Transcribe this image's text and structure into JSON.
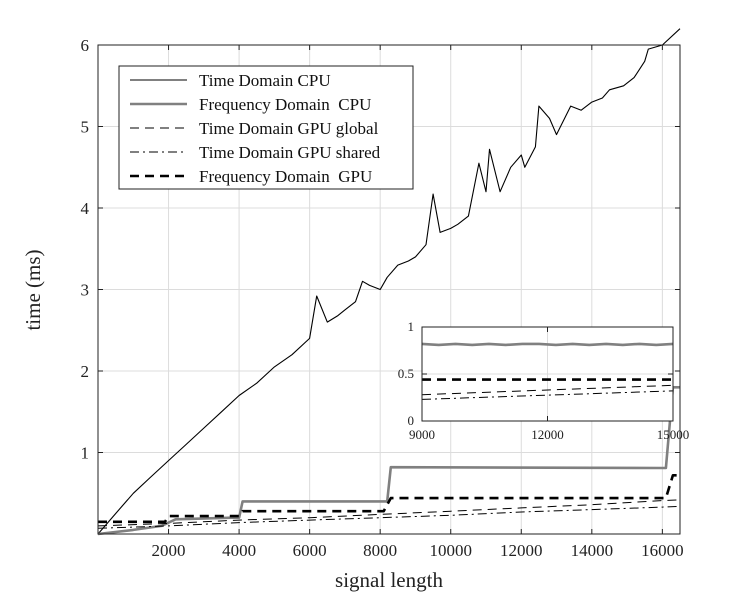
{
  "chart_data": [
    {
      "type": "line",
      "xlabel": "signal length",
      "ylabel": "time (ms)",
      "xlim": [
        0,
        16500
      ],
      "ylim": [
        0,
        6.0
      ],
      "xticks": [
        2000,
        4000,
        6000,
        8000,
        10000,
        12000,
        14000,
        16000
      ],
      "yticks": [
        1,
        2,
        3,
        4,
        5,
        6
      ],
      "grid": true,
      "legend_position": "top-left",
      "series": [
        {
          "name": "Time Domain CPU",
          "style": "solid-thin-black",
          "x": [
            0,
            500,
            1000,
            1500,
            2000,
            2500,
            3000,
            3500,
            4000,
            4500,
            5000,
            5500,
            6000,
            6200,
            6500,
            6800,
            7000,
            7300,
            7500,
            7700,
            8000,
            8200,
            8500,
            8800,
            9000,
            9300,
            9500,
            9700,
            10000,
            10200,
            10500,
            10800,
            11000,
            11100,
            11400,
            11700,
            12000,
            12100,
            12400,
            12500,
            12800,
            13000,
            13400,
            13700,
            14000,
            14300,
            14500,
            14900,
            15200,
            15500,
            15600,
            16000,
            16500
          ],
          "y": [
            0.0,
            0.25,
            0.5,
            0.7,
            0.9,
            1.1,
            1.3,
            1.5,
            1.7,
            1.85,
            2.05,
            2.2,
            2.4,
            2.92,
            2.6,
            2.68,
            2.75,
            2.85,
            3.1,
            3.05,
            3.0,
            3.15,
            3.3,
            3.35,
            3.4,
            3.55,
            4.17,
            3.7,
            3.75,
            3.8,
            3.9,
            4.55,
            4.2,
            4.72,
            4.2,
            4.5,
            4.65,
            4.5,
            4.75,
            5.25,
            5.1,
            4.9,
            5.25,
            5.2,
            5.3,
            5.35,
            5.45,
            5.5,
            5.6,
            5.8,
            5.95,
            6.0,
            6.2
          ]
        },
        {
          "name": "Frequency Domain  CPU",
          "style": "solid-thick-gray",
          "x": [
            0,
            1000,
            1800,
            2200,
            3800,
            4000,
            4100,
            8000,
            8200,
            8300,
            16000,
            16100,
            16300,
            16500
          ],
          "y": [
            0.0,
            0.05,
            0.1,
            0.18,
            0.2,
            0.2,
            0.4,
            0.4,
            0.4,
            0.82,
            0.81,
            0.81,
            1.8,
            1.8
          ]
        },
        {
          "name": "Time Domain GPU global",
          "style": "dashed-thin-black",
          "x": [
            0,
            2000,
            4000,
            6000,
            8000,
            10000,
            12000,
            14000,
            16000,
            16500
          ],
          "y": [
            0.1,
            0.13,
            0.17,
            0.2,
            0.24,
            0.28,
            0.32,
            0.36,
            0.41,
            0.42
          ]
        },
        {
          "name": "Time Domain GPU shared",
          "style": "dashdot-thin-black",
          "x": [
            0,
            2000,
            4000,
            6000,
            8000,
            10000,
            12000,
            14000,
            16000,
            16500
          ],
          "y": [
            0.07,
            0.1,
            0.14,
            0.17,
            0.2,
            0.23,
            0.27,
            0.3,
            0.33,
            0.34
          ]
        },
        {
          "name": "Frequency Domain  GPU",
          "style": "dashed-thick-black",
          "x": [
            0,
            1900,
            2000,
            3900,
            4000,
            4100,
            8000,
            8100,
            8300,
            16000,
            16100,
            16300,
            16500
          ],
          "y": [
            0.15,
            0.15,
            0.22,
            0.22,
            0.22,
            0.28,
            0.28,
            0.28,
            0.44,
            0.44,
            0.44,
            0.72,
            0.72
          ]
        }
      ]
    },
    {
      "type": "line",
      "inset": true,
      "xlim": [
        9000,
        15000
      ],
      "ylim": [
        0,
        1
      ],
      "xticks": [
        9000,
        12000,
        15000
      ],
      "yticks": [
        0,
        0.5,
        1
      ],
      "grid": true,
      "series": [
        {
          "style": "solid-thick-gray",
          "x": [
            9000,
            9400,
            9800,
            10200,
            10600,
            11000,
            11400,
            11800,
            12200,
            12600,
            13000,
            13400,
            13800,
            14200,
            14600,
            15000
          ],
          "y": [
            0.82,
            0.81,
            0.82,
            0.81,
            0.82,
            0.81,
            0.82,
            0.82,
            0.81,
            0.82,
            0.81,
            0.82,
            0.81,
            0.82,
            0.81,
            0.82
          ]
        },
        {
          "style": "dashed-thin-black",
          "x": [
            9000,
            15000
          ],
          "y": [
            0.28,
            0.38
          ]
        },
        {
          "style": "dashdot-thin-black",
          "x": [
            9000,
            15000
          ],
          "y": [
            0.23,
            0.32
          ]
        },
        {
          "style": "dashed-thick-black",
          "x": [
            9000,
            15000
          ],
          "y": [
            0.44,
            0.44
          ]
        }
      ]
    }
  ]
}
